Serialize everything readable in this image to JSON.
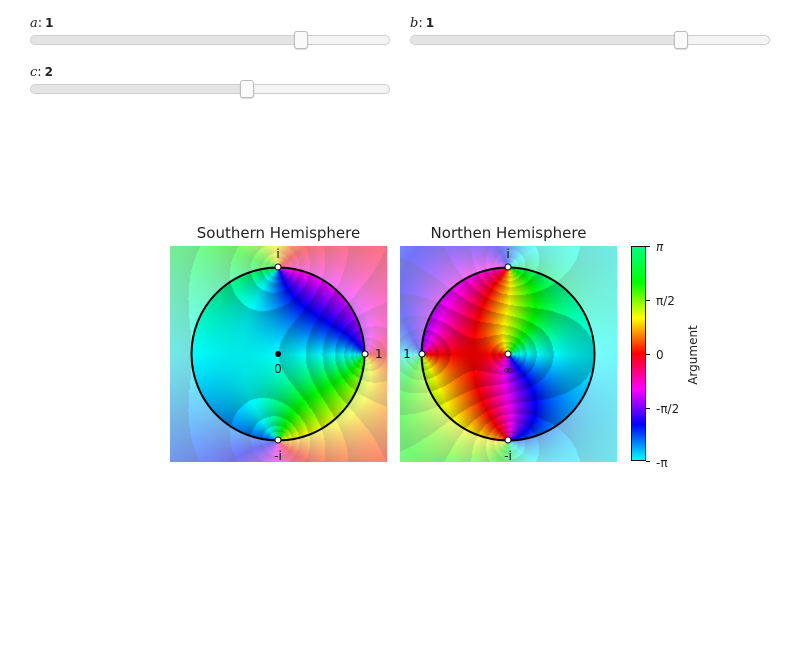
{
  "controls": {
    "sliders": [
      {
        "id": "a",
        "var": "a",
        "value": "1",
        "fraction": 0.75
      },
      {
        "id": "b",
        "var": "b",
        "value": "1",
        "fraction": 0.75
      },
      {
        "id": "c",
        "var": "c",
        "value": "2",
        "fraction": 0.6
      }
    ]
  },
  "plots": {
    "south": {
      "title": "Southern Hemisphere",
      "labels": {
        "top": "i",
        "bottom": "-i",
        "right": "1",
        "center": "0"
      }
    },
    "north": {
      "title": "Northen Hemisphere",
      "labels": {
        "top": "i",
        "bottom": "-i",
        "left": "1",
        "center": "∞"
      }
    }
  },
  "colorbar": {
    "label": "Argument",
    "ticks": [
      "π",
      "π/2",
      "0",
      "-π/2",
      "-π"
    ]
  }
}
